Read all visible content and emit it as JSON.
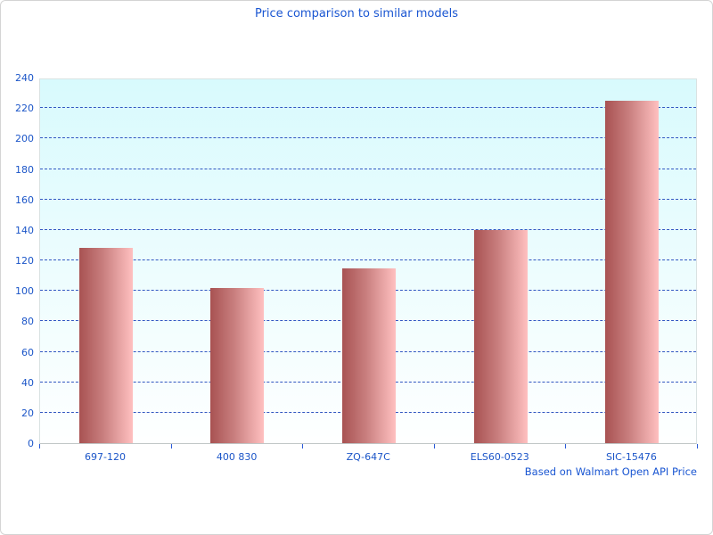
{
  "title": "Price comparison to similar models",
  "footnote": "Based on Walmart Open API Price",
  "colors": {
    "text_blue": "#1a56d2",
    "gridline_blue": "#3156c1",
    "bar_gradient_left": "#a85252",
    "bar_gradient_right": "#ffc0c0",
    "plot_bg_top": "#d8fafd",
    "plot_bg_bottom": "#feffff",
    "frame_border": "#d4d4d4"
  },
  "chart_data": {
    "type": "bar",
    "title": "Price comparison to similar models",
    "categories": [
      "697-120",
      "400 830",
      "ZQ-647C",
      "ELS60-0523",
      "SIC-15476"
    ],
    "values": [
      128,
      102,
      115,
      140,
      225
    ],
    "xlabel": "",
    "ylabel": "",
    "ylim": [
      0,
      240
    ],
    "ytick_step": 20,
    "grid": "horizontal-dashed",
    "legend": "none",
    "annotation": "Based on Walmart Open API Price"
  }
}
